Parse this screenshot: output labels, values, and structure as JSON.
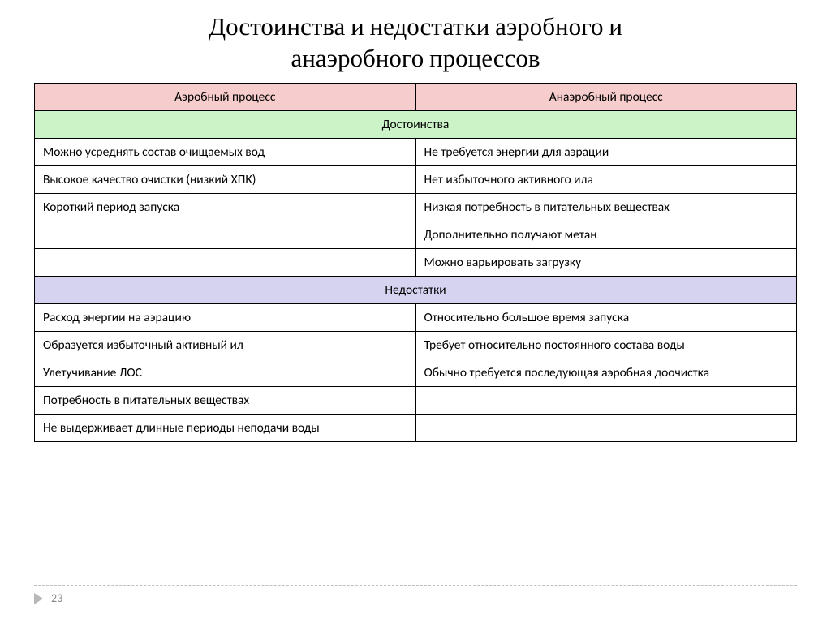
{
  "title_line1": "Достоинства и недостатки аэробного и",
  "title_line2": "анаэробного процессов",
  "colors": {
    "header_bg": "#f6cdcc",
    "advantages_bg": "#ccf3c7",
    "disadvantages_bg": "#d6d3f1",
    "border": "#000000",
    "dash": "#bfbfbf",
    "footer_arrow": "#b8b8b8",
    "footer_text": "#888888"
  },
  "table": {
    "headers": {
      "left": "Аэробный процесс",
      "right": "Анаэробный процесс"
    },
    "advantages_label": "Достоинства",
    "advantages": [
      {
        "left": "Можно усреднять состав  очищаемых вод",
        "right": "Не требуется энергии для аэрации"
      },
      {
        "left": "Высокое качество очистки (низкий ХПК)",
        "right": "Нет избыточного активного ила"
      },
      {
        "left": "Короткий период запуска",
        "right": "Низкая потребность в питательных веществах"
      },
      {
        "left": "",
        "right": "Дополнительно получают  метан"
      },
      {
        "left": "",
        "right": "Можно варьировать загрузку"
      }
    ],
    "disadvantages_label": "Недостатки",
    "disadvantages": [
      {
        "left": "Расход энергии на аэрацию",
        "right": "Относительно большое время запуска"
      },
      {
        "left": "Образуется  избыточный активный ил",
        "right": "Требует относительно постоянного состава воды"
      },
      {
        "left": "Улетучивание ЛОС",
        "right": "Обычно требуется последующая аэробная доочистка"
      },
      {
        "left": "Потребность в питательных веществах",
        "right": ""
      },
      {
        "left": "Не выдерживает длинные периоды неподачи воды",
        "right": ""
      }
    ]
  },
  "page_number": "23"
}
